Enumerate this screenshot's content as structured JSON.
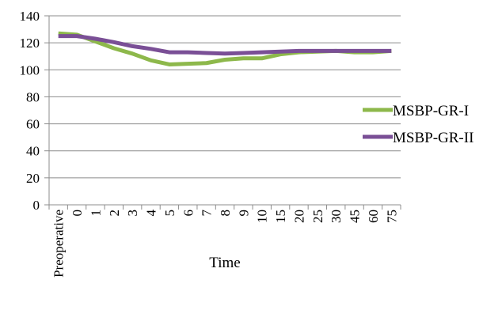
{
  "chart_data": {
    "type": "line",
    "title": "",
    "xlabel": "Time",
    "ylabel": "",
    "ylim": [
      0,
      140
    ],
    "yticks": [
      0,
      20,
      40,
      60,
      80,
      100,
      120,
      140
    ],
    "grid": "horizontal",
    "legend_position": "right",
    "categories": [
      "Preoperative",
      "0",
      "1",
      "2",
      "3",
      "4",
      "5",
      "6",
      "7",
      "8",
      "9",
      "10",
      "15",
      "20",
      "25",
      "30",
      "45",
      "60",
      "75"
    ],
    "series": [
      {
        "name": "MSBP-GR-I",
        "color": "#8DB84B",
        "values": [
          127,
          126,
          121,
          116,
          112,
          107,
          104,
          104.5,
          105,
          107.5,
          108.5,
          108.5,
          111.5,
          113,
          113.5,
          114,
          113,
          113,
          114
        ]
      },
      {
        "name": "MSBP-GR-II",
        "color": "#7A4F96",
        "values": [
          125,
          125,
          123,
          120.5,
          117.5,
          115.5,
          113,
          113,
          112.5,
          112,
          112.5,
          113,
          113.5,
          114,
          114,
          114,
          114,
          114,
          114
        ]
      }
    ]
  }
}
